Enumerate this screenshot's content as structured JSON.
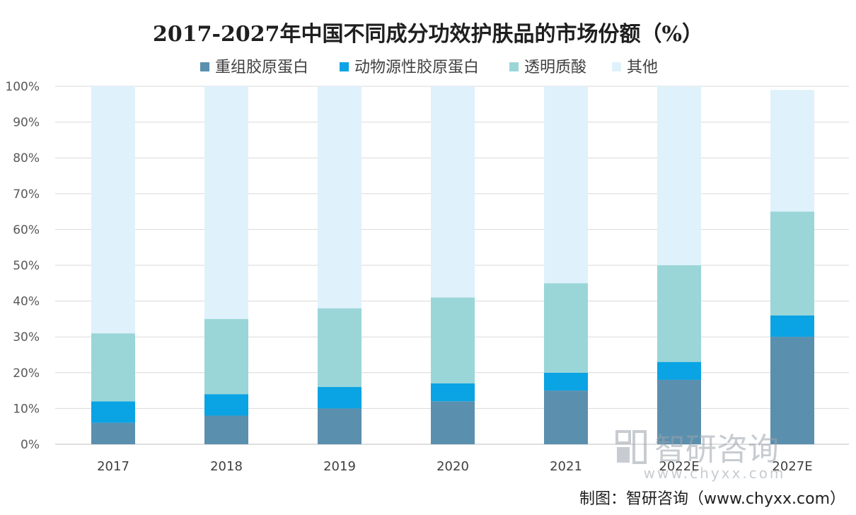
{
  "chart_data": {
    "type": "bar",
    "stacked": true,
    "title": "2017-2027年中国不同成分功效护肤品的市场份额（%）",
    "categories": [
      "2017",
      "2018",
      "2019",
      "2020",
      "2021",
      "2022E",
      "2027E"
    ],
    "series": [
      {
        "name": "重组胶原蛋白",
        "color": "#5b8fae",
        "values": [
          6,
          8,
          10,
          12,
          15,
          18,
          30
        ]
      },
      {
        "name": "动物源性胶原蛋白",
        "color": "#0aa3e3",
        "values": [
          6,
          6,
          6,
          5,
          5,
          5,
          6
        ]
      },
      {
        "name": "透明质酸",
        "color": "#9ad6d8",
        "values": [
          19,
          21,
          22,
          24,
          25,
          27,
          29
        ]
      },
      {
        "name": "其他",
        "color": "#dff1fb",
        "values": [
          69,
          65,
          62,
          59,
          55,
          50,
          34
        ]
      }
    ],
    "ylim": [
      0,
      100
    ],
    "yticks": [
      "0%",
      "10%",
      "20%",
      "30%",
      "40%",
      "50%",
      "60%",
      "70%",
      "80%",
      "90%",
      "100%"
    ],
    "grid": true,
    "legend_position": "top",
    "source": "制图：智研咨询（www.chyxx.com）",
    "watermark": {
      "text": "智研咨询",
      "url": "www.chyxx.com"
    }
  }
}
